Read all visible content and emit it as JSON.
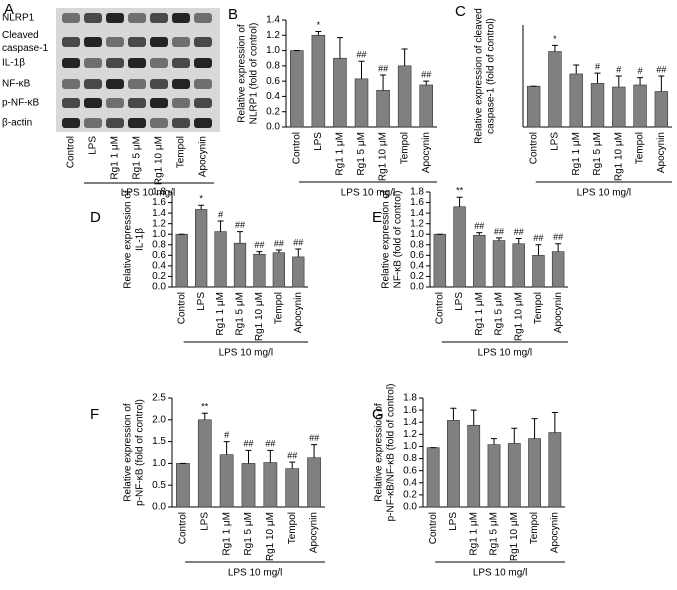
{
  "blot": {
    "panel": "A",
    "rows": [
      [
        "NLRP1"
      ],
      [
        "Cleaved",
        "caspase-1"
      ],
      [
        "IL-1β"
      ],
      [
        "NF-κB"
      ],
      [
        "p-NF-κB"
      ],
      [
        "β-actin"
      ]
    ],
    "lanes": [
      "Control",
      "LPS",
      "Rg1 1 μM",
      "Rg1 5 μM",
      "Rg1 10 μM",
      "Tempol",
      "Apocynin"
    ],
    "group_label": "LPS 10 mg/l"
  },
  "chart_data": [
    {
      "type": "bar",
      "panel": "B",
      "ylabel": [
        "Relative expression of",
        "NLRP1 (fold of control)"
      ],
      "categories": [
        "Control",
        "LPS",
        "Rg1 1 μM",
        "Rg1 5 μM",
        "Rg1 10 μM",
        "Tempol",
        "Apocynin"
      ],
      "values": [
        1.0,
        1.2,
        0.9,
        0.63,
        0.48,
        0.8,
        0.55
      ],
      "errors": [
        0,
        0.05,
        0.27,
        0.23,
        0.2,
        0.22,
        0.05
      ],
      "annotations": [
        null,
        "*",
        null,
        "##",
        "##",
        null,
        "##"
      ],
      "group_label": "LPS 10 mg/l",
      "color": "#808080",
      "ylim": [
        0,
        1.4
      ],
      "yticks": [
        {
          "value": 0,
          "label": "0.0"
        },
        0.2,
        0.4,
        0.6,
        0.8,
        {
          "value": 1,
          "label": "1.0"
        },
        1.2,
        1.4
      ]
    },
    {
      "type": "bar",
      "panel": "C",
      "ylabel": [
        "Relative expression of cleaved",
        "caspase-1 (fold of control)"
      ],
      "categories": [
        "Control",
        "LPS",
        "Rg1 1 μM",
        "Rg1 5 μM",
        "Rg1 10 μM",
        "Tempol",
        "Apocynin"
      ],
      "values": [
        1.0,
        1.85,
        1.3,
        1.07,
        0.98,
        1.03,
        0.87
      ],
      "errors": [
        0,
        0.15,
        0.22,
        0.25,
        0.27,
        0.18,
        0.38
      ],
      "annotations": [
        null,
        "*",
        null,
        "#",
        "#",
        "#",
        "##"
      ],
      "group_label": "LPS 10 mg/l",
      "color": "#808080",
      "ylim": [
        0,
        2.5
      ]
    },
    {
      "type": "bar",
      "panel": "D",
      "ylabel": [
        "Relative expression of",
        "IL-1β"
      ],
      "categories": [
        "Control",
        "LPS",
        "Rg1 1 μM",
        "Rg1 5 μM",
        "Rg1 10 μM",
        "Tempol",
        "Apocynin"
      ],
      "values": [
        1.0,
        1.47,
        1.05,
        0.83,
        0.62,
        0.65,
        0.57
      ],
      "errors": [
        0,
        0.08,
        0.2,
        0.22,
        0.05,
        0.05,
        0.15
      ],
      "annotations": [
        null,
        "*",
        "#",
        "##",
        "##",
        "##",
        "##"
      ],
      "group_label": "LPS 10 mg/l",
      "color": "#808080",
      "ylim": [
        0,
        1.8
      ],
      "yticks": [
        {
          "value": 0,
          "label": "0.0"
        },
        0.2,
        0.4,
        0.6,
        0.8,
        {
          "value": 1,
          "label": "1.0"
        },
        1.2,
        1.4,
        1.6,
        1.8
      ]
    },
    {
      "type": "bar",
      "panel": "E",
      "ylabel": [
        "Relative expression of",
        "NF-κB (fold of control)"
      ],
      "categories": [
        "Control",
        "LPS",
        "Rg1 1 μM",
        "Rg1 5 μM",
        "Rg1 10 μM",
        "Tempol",
        "Apocynin"
      ],
      "values": [
        1.0,
        1.52,
        0.98,
        0.88,
        0.82,
        0.6,
        0.67
      ],
      "errors": [
        0,
        0.18,
        0.05,
        0.05,
        0.1,
        0.2,
        0.15
      ],
      "annotations": [
        null,
        "**",
        "##",
        "##",
        "##",
        "##",
        "##"
      ],
      "group_label": "LPS 10 mg/l",
      "color": "#808080",
      "ylim": [
        0,
        1.8
      ],
      "yticks": [
        {
          "value": 0,
          "label": "0.0"
        },
        0.2,
        0.4,
        0.6,
        0.8,
        {
          "value": 1,
          "label": "1.0"
        },
        1.2,
        1.4,
        1.6,
        1.8
      ]
    },
    {
      "type": "bar",
      "panel": "F",
      "ylabel": [
        "Relative expression of",
        "p-NF-κB (fold of control)"
      ],
      "categories": [
        "Control",
        "LPS",
        "Rg1 1 μM",
        "Rg1 5 μM",
        "Rg1 10 μM",
        "Tempol",
        "Apocynin"
      ],
      "values": [
        1.0,
        2.0,
        1.2,
        1.0,
        1.02,
        0.88,
        1.13
      ],
      "errors": [
        0,
        0.15,
        0.3,
        0.3,
        0.28,
        0.15,
        0.3
      ],
      "annotations": [
        null,
        "**",
        "#",
        "##",
        "##",
        "##",
        "##"
      ],
      "group_label": "LPS 10 mg/l",
      "color": "#808080",
      "ylim": [
        0,
        2.5
      ],
      "yticks": [
        {
          "value": 0,
          "label": "0.0"
        },
        0.5,
        {
          "value": 1,
          "label": "1.0"
        },
        1.5,
        {
          "value": 2,
          "label": "2.0"
        },
        2.5
      ]
    },
    {
      "type": "bar",
      "panel": "G",
      "ylabel": [
        "Relative expression of",
        "p-NF-κB/NF-κB (fold of control)"
      ],
      "categories": [
        "Control",
        "LPS",
        "Rg1 1 μM",
        "Rg1 5 μM",
        "Rg1 10 μM",
        "Tempol",
        "Apocynin"
      ],
      "values": [
        0.98,
        1.43,
        1.35,
        1.03,
        1.05,
        1.13,
        1.23
      ],
      "errors": [
        0,
        0.2,
        0.25,
        0.1,
        0.25,
        0.33,
        0.33
      ],
      "group_label": "LPS 10 mg/l",
      "color": "#808080",
      "ylim": [
        0,
        1.8
      ],
      "yticks": [
        {
          "value": 0,
          "label": "0.0"
        },
        0.2,
        0.4,
        0.6,
        0.8,
        {
          "value": 1,
          "label": "1.0"
        },
        1.2,
        1.4,
        1.6,
        1.8
      ]
    }
  ]
}
